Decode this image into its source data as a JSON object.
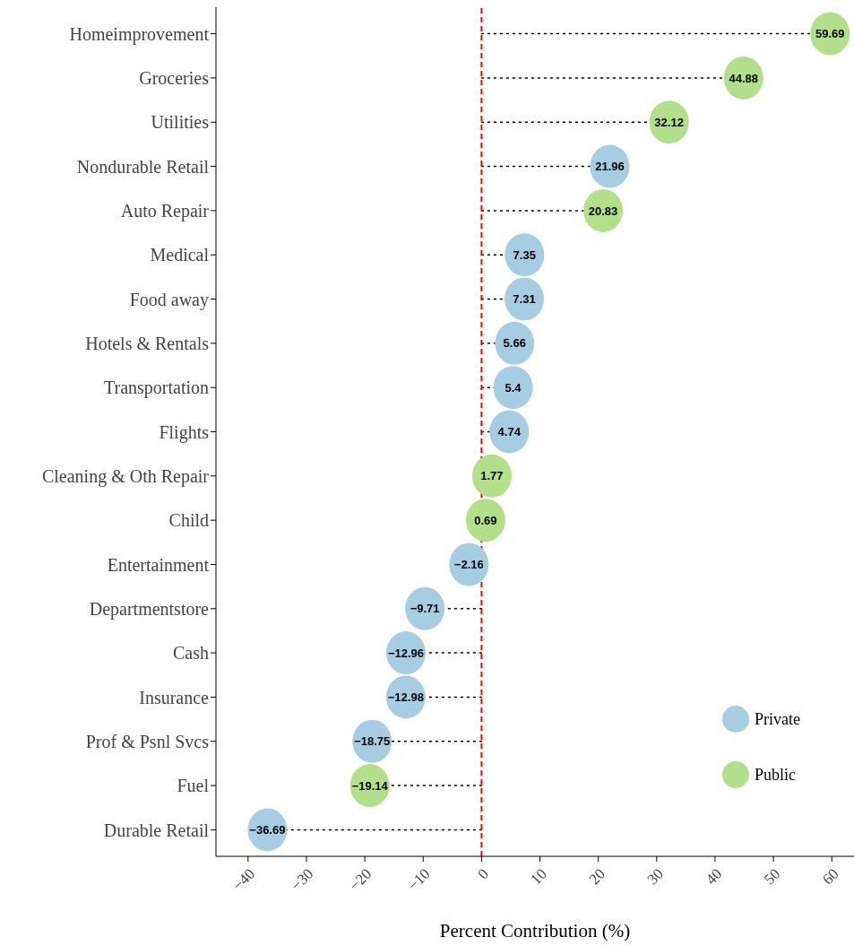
{
  "chart_data": {
    "type": "lollipop",
    "orientation": "horizontal",
    "xlabel": "Percent Contribution (%)",
    "categories": [
      "Homeimprovement",
      "Groceries",
      "Utilities",
      "Nondurable Retail",
      "Auto Repair",
      "Medical",
      "Food away",
      "Hotels & Rentals",
      "Transportation",
      "Flights",
      "Cleaning & Oth Repair",
      "Child",
      "Entertainment",
      "Departmentstore",
      "Cash",
      "Insurance",
      "Prof & Psnl Svcs",
      "Fuel",
      "Durable Retail"
    ],
    "series": [
      {
        "name": "Private",
        "color": "#a6cde2",
        "values": [
          null,
          null,
          null,
          21.96,
          null,
          7.35,
          7.31,
          5.66,
          5.4,
          4.74,
          null,
          null,
          -2.16,
          -9.71,
          -12.96,
          -12.98,
          -18.75,
          null,
          -36.69
        ],
        "value_labels": [
          null,
          null,
          null,
          "21.96",
          null,
          "7.35",
          "7.31",
          "5.66",
          "5.4",
          "4.74",
          null,
          null,
          "−2.16",
          "−9.71",
          "−12.96",
          "−12.98",
          "−18.75",
          null,
          "−36.69"
        ]
      },
      {
        "name": "Public",
        "color": "#b2df8a",
        "values": [
          59.69,
          44.88,
          32.12,
          null,
          20.83,
          null,
          null,
          null,
          null,
          null,
          1.77,
          0.69,
          null,
          null,
          null,
          null,
          null,
          -19.14,
          null
        ],
        "value_labels": [
          "59.69",
          "44.88",
          "32.12",
          null,
          "20.83",
          null,
          null,
          null,
          null,
          null,
          "1.77",
          "0.69",
          null,
          null,
          null,
          null,
          null,
          "−19.14",
          null
        ]
      }
    ],
    "xlim": [
      -45.5,
      63.8
    ],
    "xticks": [
      {
        "value": -40,
        "label": "−40"
      },
      {
        "value": -30,
        "label": "−30"
      },
      {
        "value": -20,
        "label": "−20"
      },
      {
        "value": -10,
        "label": "−10"
      },
      0,
      10,
      20,
      30,
      40,
      50,
      60
    ],
    "ref_lines": [
      {
        "axis": "x",
        "value": 0,
        "color": "#ff0000",
        "line_style": "dashed"
      }
    ],
    "line_style": "dotted",
    "marker": "circle",
    "grid": false,
    "legend": "bottom right"
  }
}
